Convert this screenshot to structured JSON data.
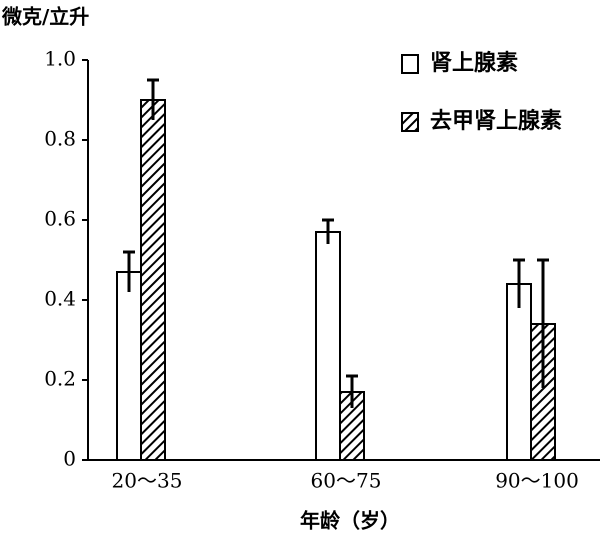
{
  "chart_data": {
    "type": "bar",
    "y_label": "微克/立升",
    "x_label": "年龄（岁）",
    "categories": [
      "20～35",
      "60～75",
      "90～100"
    ],
    "series": [
      {
        "name": "肾上腺素",
        "color": "#ffffff",
        "hatch": false,
        "values": [
          0.47,
          0.57,
          0.44
        ],
        "errors": [
          0.05,
          0.03,
          0.06
        ]
      },
      {
        "name": "去甲肾上腺素",
        "color": "#000000",
        "hatch": true,
        "values": [
          0.9,
          0.17,
          0.34
        ],
        "errors": [
          0.05,
          0.04,
          0.16
        ]
      }
    ],
    "ylim": [
      0,
      1
    ],
    "yticks": [
      0,
      0.2,
      0.4,
      0.6,
      0.8,
      {
        "value": 1,
        "label": "1.0"
      }
    ],
    "legend": "upper-right"
  }
}
